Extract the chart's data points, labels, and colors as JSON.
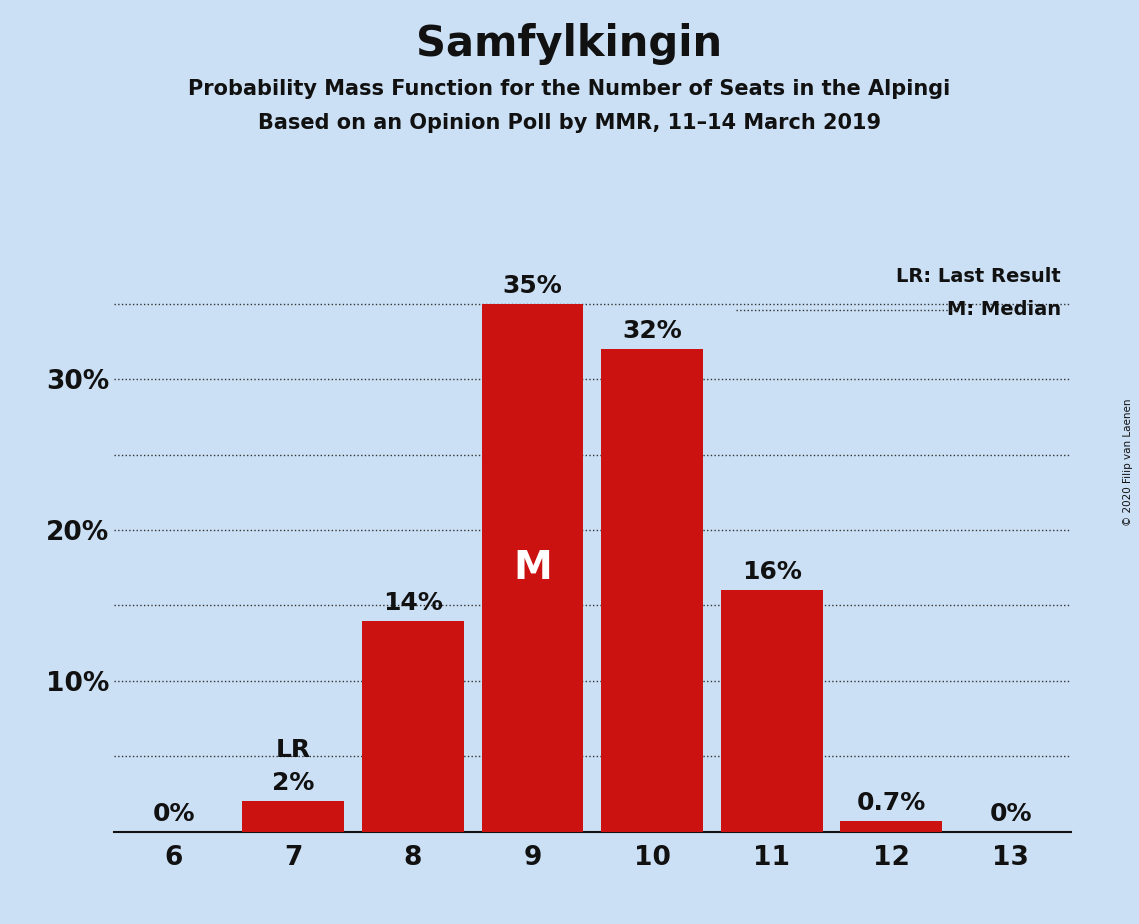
{
  "title": "Samfylkingin",
  "subtitle1": "Probability Mass Function for the Number of Seats in the Alpingi",
  "subtitle2": "Based on an Opinion Poll by MMR, 11–14 March 2019",
  "copyright": "© 2020 Filip van Laenen",
  "categories": [
    6,
    7,
    8,
    9,
    10,
    11,
    12,
    13
  ],
  "values": [
    0.0,
    2.0,
    14.0,
    35.0,
    32.0,
    16.0,
    0.7,
    0.0
  ],
  "labels": [
    "0%",
    "2%",
    "14%",
    "35%",
    "32%",
    "16%",
    "0.7%",
    "0%"
  ],
  "bar_color": "#cc1111",
  "background_color": "#cce0f5",
  "median_seat": 9,
  "lr_seat": 7,
  "legend_lr": "LR: Last Result",
  "legend_m": "M: Median",
  "ylim": [
    0,
    38
  ],
  "title_fontsize": 30,
  "subtitle_fontsize": 15,
  "label_fontsize": 18,
  "axis_fontsize": 19,
  "bar_width": 0.85,
  "m_fontsize": 28,
  "legend_fontsize": 14
}
